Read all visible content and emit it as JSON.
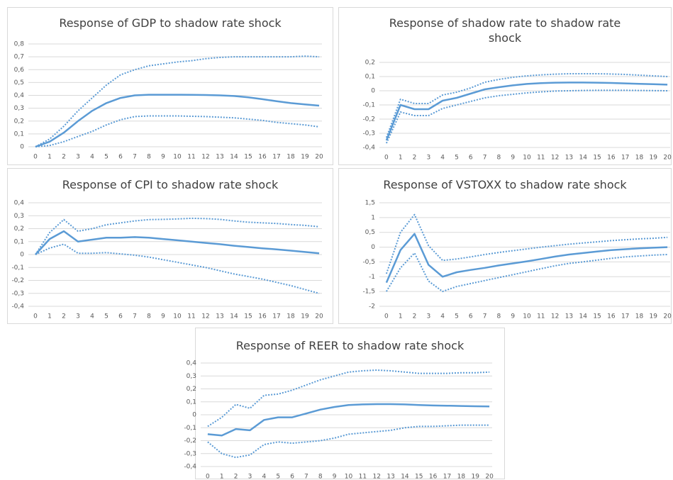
{
  "chart_data": [
    {
      "type": "line",
      "title": "Response of GDP to shadow rate shock",
      "categories": [
        "0",
        "1",
        "2",
        "3",
        "4",
        "5",
        "6",
        "7",
        "8",
        "9",
        "10",
        "11",
        "12",
        "13",
        "14",
        "15",
        "16",
        "17",
        "18",
        "19",
        "20"
      ],
      "ylim": [
        0,
        0.8
      ],
      "yticks": [
        0,
        {
          "value": 0.1,
          "label": "0,1"
        },
        {
          "value": 0.2,
          "label": "0,2"
        },
        {
          "value": 0.3,
          "label": "0,3"
        },
        {
          "value": 0.4,
          "label": "0,4"
        },
        {
          "value": 0.5,
          "label": "0,5"
        },
        {
          "value": 0.6,
          "label": "0,6"
        },
        {
          "value": 0.7,
          "label": "0,7"
        },
        {
          "value": 0.8,
          "label": "0,8"
        }
      ],
      "grid": true,
      "series": [
        {
          "color": "#5b9bd5",
          "style": "solid",
          "values": [
            0,
            0.04,
            0.11,
            0.2,
            0.28,
            0.34,
            0.38,
            0.4,
            0.405,
            0.405,
            0.405,
            0.404,
            0.403,
            0.4,
            0.395,
            0.385,
            0.37,
            0.355,
            0.34,
            0.33,
            0.32
          ]
        },
        {
          "color": "#5b9bd5",
          "style": "dotted",
          "values": [
            0,
            0.06,
            0.16,
            0.28,
            0.38,
            0.48,
            0.56,
            0.6,
            0.63,
            0.645,
            0.66,
            0.67,
            0.685,
            0.695,
            0.7,
            0.7,
            0.7,
            0.7,
            0.7,
            0.705,
            0.7
          ]
        },
        {
          "color": "#5b9bd5",
          "style": "dotted",
          "values": [
            0,
            0.01,
            0.04,
            0.08,
            0.12,
            0.17,
            0.21,
            0.235,
            0.24,
            0.24,
            0.24,
            0.237,
            0.235,
            0.23,
            0.225,
            0.215,
            0.205,
            0.19,
            0.18,
            0.17,
            0.155
          ]
        }
      ]
    },
    {
      "type": "line",
      "title": "Response of shadow rate to shadow rate shock",
      "categories": [
        "0",
        "1",
        "2",
        "3",
        "4",
        "5",
        "6",
        "7",
        "8",
        "9",
        "10",
        "11",
        "12",
        "13",
        "14",
        "15",
        "16",
        "17",
        "18",
        "19",
        "20"
      ],
      "ylim": [
        -0.4,
        0.2
      ],
      "yticks": [
        {
          "value": -0.4,
          "label": "-0,4"
        },
        {
          "value": -0.3,
          "label": "-0,3"
        },
        {
          "value": -0.2,
          "label": "-0,2"
        },
        {
          "value": -0.1,
          "label": "-0,1"
        },
        0,
        {
          "value": 0.1,
          "label": "0,1"
        },
        {
          "value": 0.2,
          "label": "0,2"
        }
      ],
      "grid": true,
      "series": [
        {
          "color": "#5b9bd5",
          "style": "solid",
          "values": [
            -0.35,
            -0.1,
            -0.13,
            -0.13,
            -0.07,
            -0.05,
            -0.02,
            0.01,
            0.025,
            0.038,
            0.048,
            0.054,
            0.057,
            0.058,
            0.058,
            0.057,
            0.055,
            0.052,
            0.049,
            0.046,
            0.043
          ]
        },
        {
          "color": "#5b9bd5",
          "style": "dotted",
          "values": [
            -0.33,
            -0.06,
            -0.09,
            -0.09,
            -0.03,
            -0.01,
            0.02,
            0.06,
            0.08,
            0.095,
            0.105,
            0.112,
            0.117,
            0.12,
            0.12,
            0.12,
            0.118,
            0.115,
            0.11,
            0.105,
            0.1
          ]
        },
        {
          "color": "#5b9bd5",
          "style": "dotted",
          "values": [
            -0.37,
            -0.15,
            -0.175,
            -0.175,
            -0.125,
            -0.1,
            -0.075,
            -0.05,
            -0.035,
            -0.025,
            -0.015,
            -0.008,
            -0.002,
            0,
            0.002,
            0.003,
            0.003,
            0.003,
            0.002,
            0.001,
            0
          ]
        }
      ]
    },
    {
      "type": "line",
      "title": "Response of CPI to shadow rate shock",
      "categories": [
        "0",
        "1",
        "2",
        "3",
        "4",
        "5",
        "6",
        "7",
        "8",
        "9",
        "10",
        "11",
        "12",
        "13",
        "14",
        "15",
        "16",
        "17",
        "18",
        "19",
        "20"
      ],
      "ylim": [
        -0.4,
        0.4
      ],
      "yticks": [
        {
          "value": -0.4,
          "label": "-0,4"
        },
        {
          "value": -0.3,
          "label": "-0,3"
        },
        {
          "value": -0.2,
          "label": "-0,2"
        },
        {
          "value": -0.1,
          "label": "-0,1"
        },
        0,
        {
          "value": 0.1,
          "label": "0,1"
        },
        {
          "value": 0.2,
          "label": "0,2"
        },
        {
          "value": 0.3,
          "label": "0,3"
        },
        {
          "value": 0.4,
          "label": "0,4"
        }
      ],
      "grid": true,
      "series": [
        {
          "color": "#5b9bd5",
          "style": "solid",
          "values": [
            0,
            0.12,
            0.18,
            0.1,
            0.115,
            0.13,
            0.13,
            0.135,
            0.13,
            0.12,
            0.11,
            0.1,
            0.09,
            0.08,
            0.068,
            0.058,
            0.048,
            0.04,
            0.03,
            0.02,
            0.01
          ]
        },
        {
          "color": "#5b9bd5",
          "style": "dotted",
          "values": [
            0,
            0.17,
            0.27,
            0.18,
            0.2,
            0.23,
            0.245,
            0.26,
            0.27,
            0.272,
            0.275,
            0.28,
            0.278,
            0.272,
            0.26,
            0.25,
            0.245,
            0.24,
            0.232,
            0.225,
            0.215
          ]
        },
        {
          "color": "#5b9bd5",
          "style": "dotted",
          "values": [
            0,
            0.05,
            0.08,
            0.01,
            0.01,
            0.015,
            0.005,
            -0.005,
            -0.02,
            -0.04,
            -0.06,
            -0.08,
            -0.1,
            -0.125,
            -0.15,
            -0.17,
            -0.19,
            -0.215,
            -0.24,
            -0.27,
            -0.3
          ]
        }
      ]
    },
    {
      "type": "line",
      "title": "Response of VSTOXX to shadow rate shock",
      "categories": [
        "0",
        "1",
        "2",
        "3",
        "4",
        "5",
        "6",
        "7",
        "8",
        "9",
        "10",
        "11",
        "12",
        "13",
        "14",
        "15",
        "16",
        "17",
        "18",
        "19",
        "20"
      ],
      "ylim": [
        -2,
        1.5
      ],
      "yticks": [
        -2,
        {
          "value": -1.5,
          "label": "-1,5"
        },
        -1,
        {
          "value": -0.5,
          "label": "-0,5"
        },
        0,
        {
          "value": 0.5,
          "label": "0,5"
        },
        1,
        {
          "value": 1.5,
          "label": "1,5"
        }
      ],
      "grid": true,
      "series": [
        {
          "color": "#5b9bd5",
          "style": "solid",
          "values": [
            -1.2,
            -0.1,
            0.45,
            -0.6,
            -1,
            -0.85,
            -0.77,
            -0.7,
            -0.62,
            -0.55,
            -0.48,
            -0.4,
            -0.32,
            -0.25,
            -0.2,
            -0.15,
            -0.1,
            -0.07,
            -0.04,
            -0.02,
            0
          ]
        },
        {
          "color": "#5b9bd5",
          "style": "dotted",
          "values": [
            -0.9,
            0.5,
            1.1,
            0.05,
            -0.45,
            -0.4,
            -0.33,
            -0.25,
            -0.18,
            -0.12,
            -0.06,
            0,
            0.05,
            0.1,
            0.14,
            0.18,
            0.22,
            0.25,
            0.28,
            0.3,
            0.33
          ]
        },
        {
          "color": "#5b9bd5",
          "style": "dotted",
          "values": [
            -1.5,
            -0.7,
            -0.2,
            -1.15,
            -1.5,
            -1.33,
            -1.23,
            -1.13,
            -1.03,
            -0.93,
            -0.83,
            -0.73,
            -0.63,
            -0.55,
            -0.5,
            -0.44,
            -0.38,
            -0.33,
            -0.3,
            -0.27,
            -0.25
          ]
        }
      ]
    },
    {
      "type": "line",
      "title": "Response of REER to shadow rate shock",
      "categories": [
        "0",
        "1",
        "2",
        "3",
        "4",
        "5",
        "6",
        "7",
        "8",
        "9",
        "10",
        "11",
        "12",
        "13",
        "14",
        "15",
        "16",
        "17",
        "18",
        "19",
        "20"
      ],
      "ylim": [
        -0.4,
        0.4
      ],
      "yticks": [
        {
          "value": -0.4,
          "label": "-0,4"
        },
        {
          "value": -0.3,
          "label": "-0,3"
        },
        {
          "value": -0.2,
          "label": "-0,2"
        },
        {
          "value": -0.1,
          "label": "-0,1"
        },
        0,
        {
          "value": 0.1,
          "label": "0,1"
        },
        {
          "value": 0.2,
          "label": "0,2"
        },
        {
          "value": 0.3,
          "label": "0,3"
        },
        {
          "value": 0.4,
          "label": "0,4"
        }
      ],
      "grid": true,
      "series": [
        {
          "color": "#5b9bd5",
          "style": "solid",
          "values": [
            -0.15,
            -0.16,
            -0.11,
            -0.12,
            -0.04,
            -0.02,
            -0.02,
            0.01,
            0.04,
            0.06,
            0.075,
            0.08,
            0.082,
            0.082,
            0.08,
            0.075,
            0.072,
            0.07,
            0.068,
            0.066,
            0.064
          ]
        },
        {
          "color": "#5b9bd5",
          "style": "dotted",
          "values": [
            -0.09,
            -0.02,
            0.08,
            0.05,
            0.15,
            0.16,
            0.19,
            0.23,
            0.27,
            0.3,
            0.33,
            0.34,
            0.345,
            0.34,
            0.33,
            0.32,
            0.32,
            0.32,
            0.325,
            0.325,
            0.33
          ]
        },
        {
          "color": "#5b9bd5",
          "style": "dotted",
          "values": [
            -0.21,
            -0.3,
            -0.33,
            -0.31,
            -0.23,
            -0.21,
            -0.22,
            -0.21,
            -0.2,
            -0.18,
            -0.15,
            -0.14,
            -0.13,
            -0.12,
            -0.1,
            -0.09,
            -0.09,
            -0.085,
            -0.08,
            -0.08,
            -0.08
          ]
        }
      ]
    }
  ]
}
